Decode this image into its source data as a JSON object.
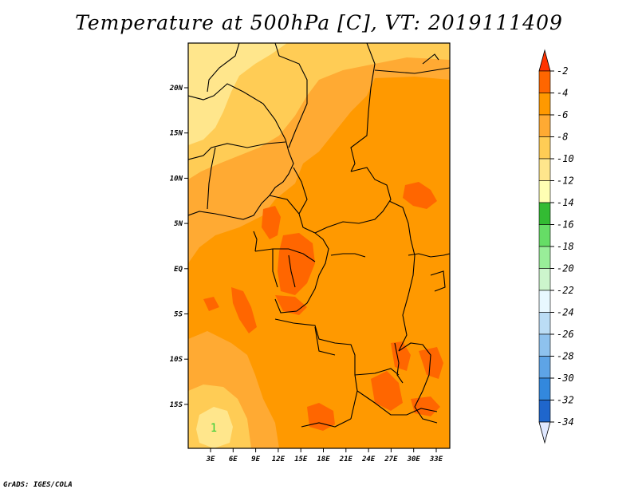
{
  "title": "Temperature at 500hPa [C], VT: 2019111409",
  "credit": "GrADS: IGES/COLA",
  "map": {
    "lat_labels": [
      "20N",
      "15N",
      "10N",
      "5N",
      "EQ",
      "5S",
      "10S",
      "15S"
    ],
    "lon_labels": [
      "3E",
      "6E",
      "9E",
      "12E",
      "15E",
      "18E",
      "21E",
      "24E",
      "27E",
      "30E",
      "33E"
    ],
    "contour_label": "1",
    "contour_label_color": "#33cc33"
  },
  "colorbar": {
    "labels": [
      "-2",
      "-4",
      "-6",
      "-8",
      "-10",
      "-12",
      "-14",
      "-16",
      "-18",
      "-20",
      "-22",
      "-24",
      "-26",
      "-28",
      "-30",
      "-32",
      "-34"
    ],
    "colors": [
      "#ff3300",
      "#ff6600",
      "#ff9900",
      "#ffaa33",
      "#ffcc55",
      "#ffe68c",
      "#ffffb3",
      "#33bb33",
      "#66dd66",
      "#99ee99",
      "#ccf5cc",
      "#e8f8ff",
      "#bbddf5",
      "#8ec2ee",
      "#5ea4e6",
      "#3388dd",
      "#1f66cc",
      "#1144aa",
      "#0a2a8a",
      "#050a60"
    ],
    "top_arrow_color": "#ff3300",
    "bottom_arrow_color": "#e0e8ff"
  }
}
